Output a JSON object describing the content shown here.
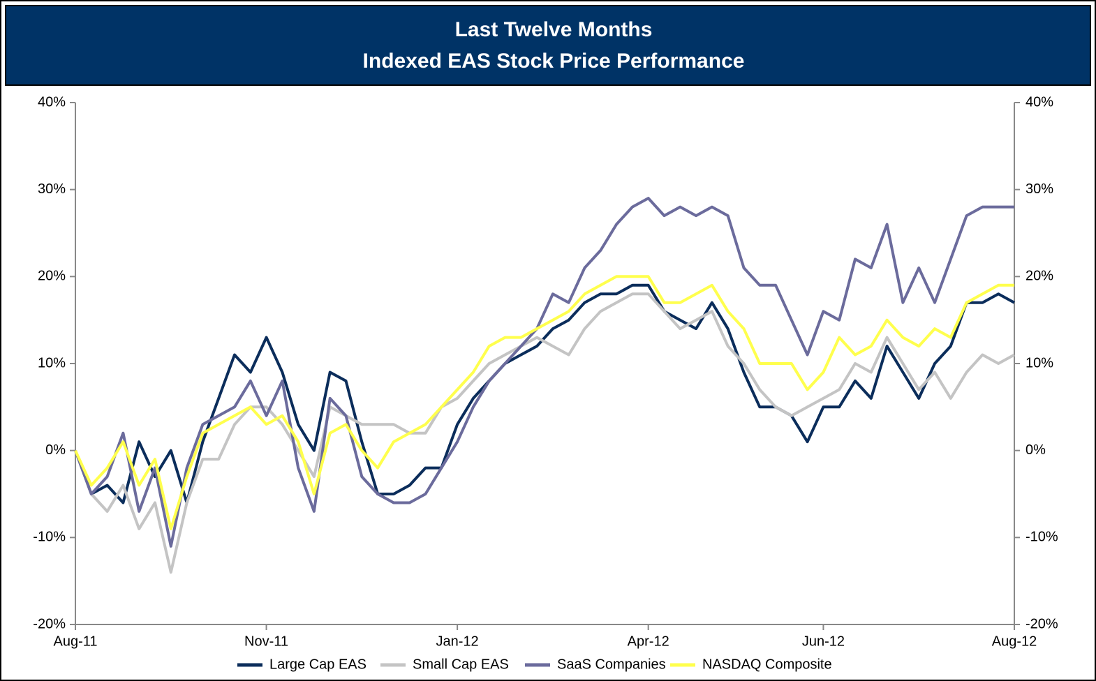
{
  "chart_data": {
    "type": "line",
    "title": "Last Twelve Months",
    "subtitle": "Indexed EAS Stock Price Performance",
    "categories": [
      "Aug-11",
      null,
      null,
      null,
      null,
      null,
      null,
      null,
      null,
      null,
      null,
      null,
      "Nov-11",
      null,
      null,
      null,
      null,
      null,
      null,
      null,
      null,
      null,
      null,
      null,
      "Jan-12",
      null,
      null,
      null,
      null,
      null,
      null,
      null,
      null,
      null,
      null,
      null,
      "Apr-12",
      null,
      null,
      null,
      null,
      null,
      null,
      null,
      null,
      null,
      null,
      "Jun-12",
      null,
      null,
      null,
      null,
      null,
      null,
      null,
      null,
      null,
      null,
      null,
      "Aug-12"
    ],
    "series": [
      {
        "name": "Large Cap EAS",
        "color": "#0b2d5b",
        "values": [
          0,
          -5,
          -4,
          -6,
          1,
          -3,
          0,
          -6,
          1,
          6,
          11,
          9,
          13,
          9,
          3,
          0,
          9,
          8,
          1,
          -5,
          -5,
          -4,
          -2,
          -2,
          3,
          6,
          8,
          10,
          11,
          12,
          14,
          15,
          17,
          18,
          18,
          19,
          19,
          16,
          15,
          14,
          17,
          14,
          9,
          5,
          5,
          4,
          1,
          5,
          5,
          8,
          6,
          12,
          9,
          6,
          10,
          12,
          17,
          17,
          18,
          17
        ]
      },
      {
        "name": "Small Cap EAS",
        "color": "#c4c4c4",
        "values": [
          0,
          -5,
          -7,
          -4,
          -9,
          -6,
          -14,
          -6,
          -1,
          -1,
          3,
          5,
          5,
          3,
          0,
          -3,
          5,
          4,
          3,
          3,
          3,
          2,
          2,
          5,
          6,
          8,
          10,
          11,
          12,
          13,
          12,
          11,
          14,
          16,
          17,
          18,
          18,
          16,
          14,
          15,
          16,
          12,
          10,
          7,
          5,
          4,
          5,
          6,
          7,
          10,
          9,
          13,
          10,
          7,
          9,
          6,
          9,
          11,
          10,
          11
        ]
      },
      {
        "name": "SaaS Companies",
        "color": "#6b6b9c",
        "values": [
          0,
          -5,
          -3,
          2,
          -7,
          -2,
          -11,
          -2,
          3,
          4,
          5,
          8,
          4,
          8,
          -2,
          -7,
          6,
          4,
          -3,
          -5,
          -6,
          -6,
          -5,
          -2,
          1,
          5,
          8,
          10,
          12,
          14,
          18,
          17,
          21,
          23,
          26,
          28,
          29,
          27,
          28,
          27,
          28,
          27,
          21,
          19,
          19,
          15,
          11,
          16,
          15,
          22,
          21,
          26,
          17,
          21,
          17,
          22,
          27,
          28,
          28,
          28
        ]
      },
      {
        "name": "NASDAQ Composite",
        "color": "#ffff4d",
        "values": [
          0,
          -4,
          -2,
          1,
          -4,
          -1,
          -9,
          -3,
          2,
          3,
          4,
          5,
          3,
          4,
          1,
          -5,
          2,
          3,
          0,
          -2,
          1,
          2,
          3,
          5,
          7,
          9,
          12,
          13,
          13,
          14,
          15,
          16,
          18,
          19,
          20,
          20,
          20,
          17,
          17,
          18,
          19,
          16,
          14,
          10,
          10,
          10,
          7,
          9,
          13,
          11,
          12,
          15,
          13,
          12,
          14,
          13,
          17,
          18,
          19,
          19
        ]
      }
    ],
    "ylim": [
      -20,
      40
    ],
    "yticks": [
      {
        "value": -20,
        "label": "-20%"
      },
      {
        "value": -10,
        "label": "-10%"
      },
      {
        "value": 0,
        "label": "0%"
      },
      {
        "value": 10,
        "label": "10%"
      },
      {
        "value": 20,
        "label": "20%"
      },
      {
        "value": 30,
        "label": "30%"
      },
      {
        "value": 40,
        "label": "40%"
      }
    ],
    "y2lim": [
      -20,
      40
    ],
    "y2ticks": [
      {
        "value": -20,
        "label": "-20%"
      },
      {
        "value": -10,
        "label": "-10%"
      },
      {
        "value": 0,
        "label": "0%"
      },
      {
        "value": 10,
        "label": "10%"
      },
      {
        "value": 20,
        "label": "20%"
      },
      {
        "value": 30,
        "label": "30%"
      },
      {
        "value": 40,
        "label": "40%"
      }
    ],
    "grid": false,
    "legend": "bottom"
  }
}
